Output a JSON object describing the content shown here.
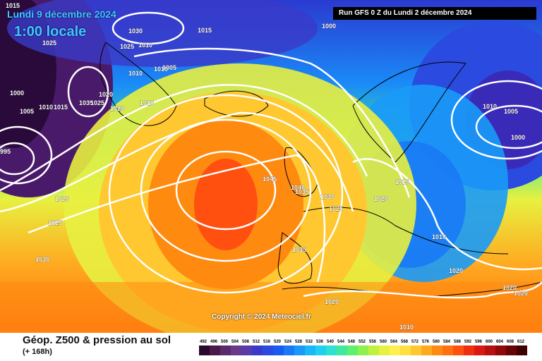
{
  "header": {
    "date": "Lundi 9 décembre 2024",
    "time": "1:00 locale",
    "run": "Run GFS 0 Z du Lundi 2 décembre 2024"
  },
  "copyright": "Copyright © 2024 Meteociel.fr",
  "footer": {
    "title": "Géop. Z500 & pression au sol",
    "subtitle": "(+ 168h)"
  },
  "legend": {
    "values": [
      "492",
      "496",
      "500",
      "504",
      "508",
      "512",
      "516",
      "520",
      "524",
      "528",
      "532",
      "536",
      "540",
      "544",
      "548",
      "552",
      "556",
      "560",
      "564",
      "568",
      "572",
      "576",
      "580",
      "584",
      "588",
      "592",
      "596",
      "600",
      "604",
      "608",
      "612"
    ],
    "colors": [
      "#2a0a2a",
      "#4a1a4a",
      "#5a2a6a",
      "#6a3a8a",
      "#5a3aa8",
      "#3a3ac8",
      "#2a4ae0",
      "#1a5af0",
      "#1a7af5",
      "#1a9af8",
      "#1ab8f8",
      "#20d0f0",
      "#30e0d0",
      "#40e8a0",
      "#60f070",
      "#90f050",
      "#c0f040",
      "#e8f040",
      "#fff050",
      "#ffe040",
      "#ffc830",
      "#ffa820",
      "#ff8a10",
      "#ff7010",
      "#ff5010",
      "#ee3010",
      "#d81a10",
      "#b81010",
      "#900808",
      "#680404",
      "#400000"
    ]
  },
  "isobar_labels": [
    "1015",
    "1030",
    "1025",
    "1025",
    "1010",
    "1005",
    "1010",
    "1000",
    "1005",
    "1010",
    "1015",
    "1020",
    "1035",
    "1025",
    "1020",
    "1010",
    "1010",
    "1015",
    "1000",
    "995",
    "1020",
    "1025",
    "1030",
    "1045",
    "1040",
    "1035",
    "1030",
    "1025",
    "1020",
    "1015",
    "1010",
    "1005",
    "1000",
    "1010",
    "1035",
    "1020",
    "1010",
    "1020",
    "1020",
    "1020"
  ]
}
